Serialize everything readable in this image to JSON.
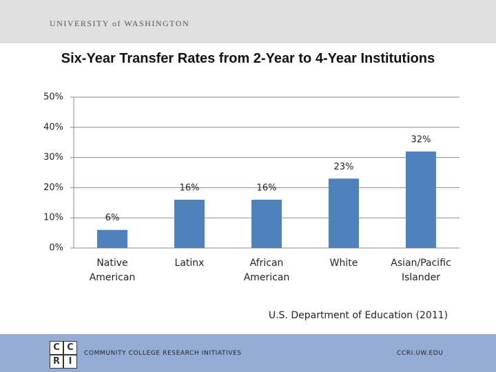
{
  "header": {
    "institution": "UNIVERSITY of WASHINGTON"
  },
  "chart_data": {
    "type": "bar",
    "title": "Six-Year Transfer Rates from 2-Year to 4-Year Institutions",
    "categories": [
      "Native American",
      "Latinx",
      "African American",
      "White",
      "Asian/Pacific Islander"
    ],
    "values": [
      6,
      16,
      16,
      23,
      32
    ],
    "value_labels": [
      "6%",
      "16%",
      "16%",
      "23%",
      "32%"
    ],
    "color": "#4f81bd",
    "ylim": [
      0,
      50
    ],
    "yticks": [
      {
        "value": 0,
        "label": "0%"
      },
      {
        "value": 10,
        "label": "10%"
      },
      {
        "value": 20,
        "label": "20%"
      },
      {
        "value": 30,
        "label": "30%"
      },
      {
        "value": 40,
        "label": "40%"
      },
      {
        "value": 50,
        "label": "50%"
      }
    ],
    "grid": true,
    "source": "U.S. Department of Education (2011)"
  },
  "footer": {
    "logo": [
      "C",
      "C",
      "R",
      "I"
    ],
    "organization": "COMMUNITY COLLEGE RESEARCH INITIATIVES",
    "url": "CCRI.UW.EDU"
  }
}
